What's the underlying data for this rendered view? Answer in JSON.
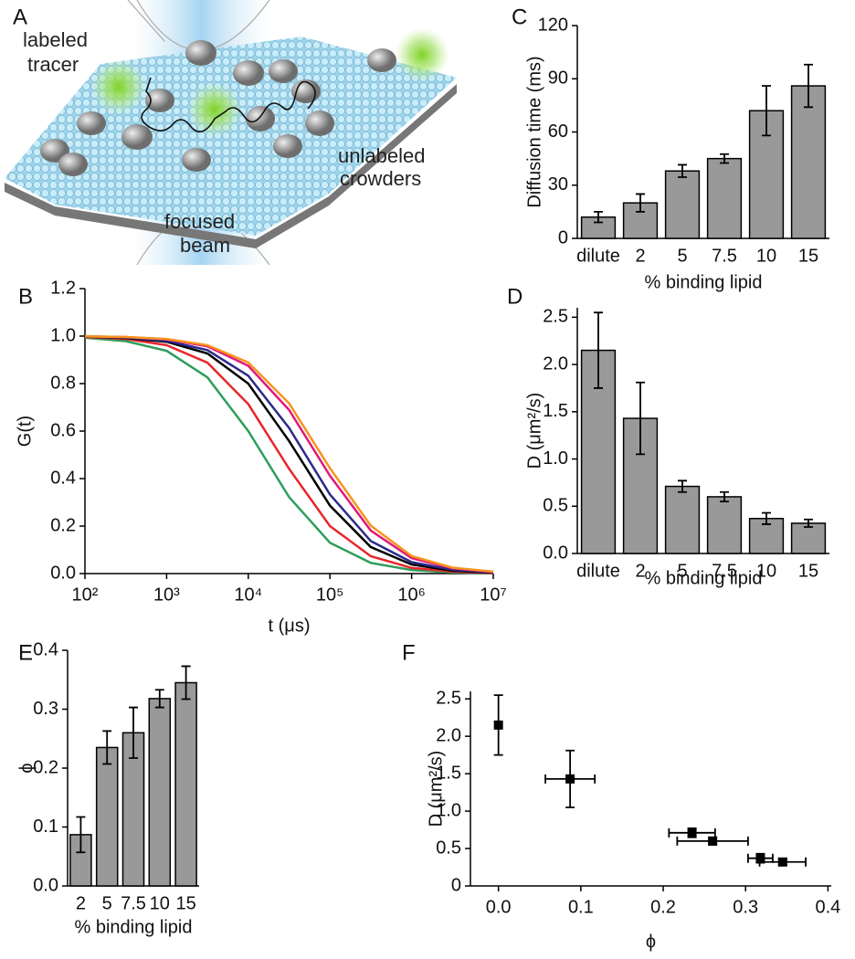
{
  "illustration": {
    "label": "A",
    "texts": [
      "labeled",
      "tracer",
      "unlabeled",
      "crowders",
      "focused",
      "beam"
    ]
  },
  "chart_data": [
    {
      "type": "bar",
      "label": "C",
      "ylabel": "Diffusion time (ms)",
      "xlabel": "% binding lipid",
      "categories": [
        "dilute",
        "2",
        "5",
        "7.5",
        "10",
        "15"
      ],
      "values": [
        12,
        20,
        38,
        45,
        72,
        86
      ],
      "errors": [
        3,
        5,
        3.5,
        2.5,
        14,
        12
      ],
      "color": "#999999",
      "ylim": [
        0,
        120
      ],
      "yticks": [
        0,
        30,
        60,
        90,
        120
      ]
    },
    {
      "type": "bar",
      "label": "D",
      "ylabel": "D (μm²/s)",
      "xlabel": "% binding lipid",
      "categories": [
        "dilute",
        "2",
        "5",
        "7.5",
        "10",
        "15"
      ],
      "values": [
        2.15,
        1.43,
        0.71,
        0.6,
        0.37,
        0.32
      ],
      "errors": [
        0.4,
        0.38,
        0.06,
        0.05,
        0.06,
        0.04
      ],
      "color": "#999999",
      "ylim": [
        0,
        2.6
      ],
      "yticks": [
        {
          "value": 0,
          "label": "0.0"
        },
        0.5,
        {
          "value": 1,
          "label": "1.0"
        },
        1.5,
        {
          "value": 2,
          "label": "2.0"
        },
        2.5
      ]
    },
    {
      "type": "line",
      "label": "B",
      "ylabel": "G(t)",
      "xlabel": "t (μs)",
      "xlog": true,
      "x": [
        100,
        316,
        1000,
        3162,
        10000,
        31623,
        100000,
        316228,
        1000000,
        3162278,
        10000000
      ],
      "series": [
        {
          "color": "#2e9e5b",
          "values": [
            0.993,
            0.979,
            0.938,
            0.826,
            0.6,
            0.322,
            0.13,
            0.045,
            0.015,
            0.005,
            0.0015
          ]
        },
        {
          "color": "#e8262a",
          "values": [
            0.996,
            0.988,
            0.962,
            0.888,
            0.714,
            0.441,
            0.2,
            0.073,
            0.024,
            0.008,
            0.0025
          ]
        },
        {
          "color": "#000000",
          "values": [
            0.998,
            0.992,
            0.976,
            0.927,
            0.8,
            0.558,
            0.286,
            0.112,
            0.038,
            0.012,
            0.004
          ]
        },
        {
          "color": "#2b2a8c",
          "values": [
            0.998,
            0.994,
            0.98,
            0.941,
            0.833,
            0.613,
            0.333,
            0.137,
            0.048,
            0.016,
            0.005
          ]
        },
        {
          "color": "#e0197d",
          "values": [
            0.999,
            0.996,
            0.986,
            0.957,
            0.875,
            0.689,
            0.412,
            0.181,
            0.065,
            0.022,
            0.007
          ]
        },
        {
          "color": "#f7941d",
          "values": [
            0.999,
            0.996,
            0.988,
            0.962,
            0.889,
            0.717,
            0.444,
            0.202,
            0.074,
            0.025,
            0.008
          ]
        }
      ],
      "xlim": [
        100,
        10000000
      ],
      "xticks": [
        {
          "value": 100,
          "label": "10²"
        },
        {
          "value": 1000,
          "label": "10³"
        },
        {
          "value": 10000,
          "label": "10⁴"
        },
        {
          "value": 100000,
          "label": "10⁵"
        },
        {
          "value": 1000000,
          "label": "10⁶"
        },
        {
          "value": 10000000,
          "label": "10⁷"
        }
      ],
      "ylim": [
        0,
        1.2
      ],
      "yticks": [
        {
          "value": 0,
          "label": "0.0"
        },
        0.2,
        0.4,
        0.6,
        0.8,
        {
          "value": 1,
          "label": "1.0"
        },
        1.2
      ]
    },
    {
      "type": "bar",
      "label": "E",
      "ylabel": "ϕ",
      "xlabel": "% binding lipid",
      "categories": [
        "2",
        "5",
        "7.5",
        "10",
        "15"
      ],
      "values": [
        0.087,
        0.235,
        0.26,
        0.318,
        0.345
      ],
      "errors": [
        0.03,
        0.028,
        0.043,
        0.015,
        0.028
      ],
      "color": "#999999",
      "ylim": [
        0,
        0.4
      ],
      "yticks": [
        {
          "value": 0,
          "label": "0.0"
        },
        0.1,
        0.2,
        0.3,
        0.4
      ]
    },
    {
      "type": "scatter",
      "label": "F",
      "ylabel": "D (μm²/s)",
      "xlabel": "ϕ",
      "x": [
        0,
        0.087,
        0.235,
        0.26,
        0.318,
        0.345
      ],
      "xerr": [
        0,
        0.03,
        0.028,
        0.043,
        0.015,
        0.028
      ],
      "values": [
        2.15,
        1.43,
        0.71,
        0.6,
        0.37,
        0.32
      ],
      "yerr": [
        0.4,
        0.38,
        0.06,
        0.05,
        0.06,
        0.04
      ],
      "color": "#000000",
      "xlim": [
        -0.034,
        0.404
      ],
      "xticks": [
        {
          "value": 0,
          "label": "0.0"
        },
        0.1,
        0.2,
        0.3,
        0.4
      ],
      "ylim": [
        0,
        2.6
      ],
      "yticks": [
        0,
        0.5,
        {
          "value": 1,
          "label": "1.0"
        },
        1.5,
        {
          "value": 2,
          "label": "2.0"
        },
        2.5
      ]
    }
  ]
}
